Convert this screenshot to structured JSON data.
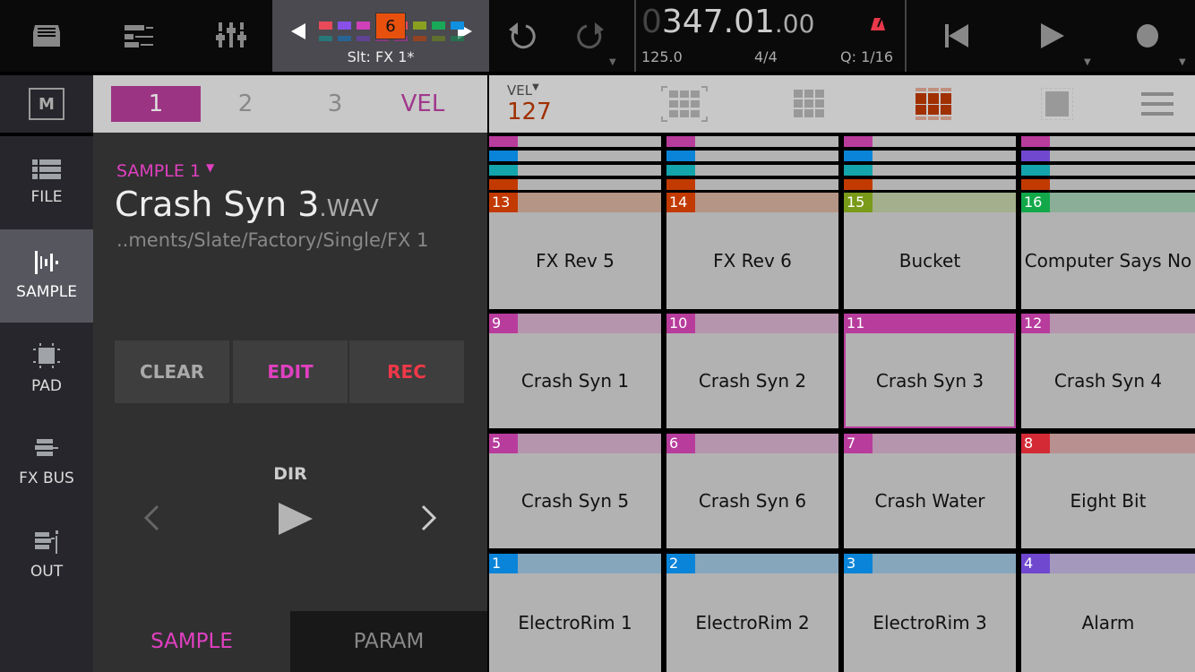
{
  "topbar": {
    "icons": [
      "browser-icon",
      "track-edit-icon",
      "mixer-icon"
    ],
    "slot": {
      "number": "6",
      "label": "Slt: FX 1*",
      "colors_top": [
        "#e84a5a",
        "#8850e8",
        "#d040b8",
        "#e84a5a",
        "#e84a5a",
        "#8aa020",
        "#18a858",
        "#1090e0"
      ],
      "colors_bottom": [
        "#1a8a8a",
        "#1a70b0",
        "#6a40b0",
        "#a03090",
        "#a03090",
        "#b04010",
        "#6a8020",
        "#188050"
      ],
      "badge_color": "#e8500e"
    },
    "clock": {
      "lead": "0",
      "main": "347.01",
      "frac": ".00",
      "tempo": "125.0",
      "time_sig": "4/4",
      "quantize": "Q: 1/16"
    }
  },
  "sidebar": {
    "mode_label": "M",
    "items": [
      {
        "label": "FILE",
        "icon": "list-icon"
      },
      {
        "label": "SAMPLE",
        "icon": "waveform-icon",
        "selected": true
      },
      {
        "label": "PAD",
        "icon": "pad-icon"
      },
      {
        "label": "FX BUS",
        "icon": "fx-bus-icon"
      },
      {
        "label": "OUT",
        "icon": "output-icon"
      }
    ]
  },
  "mid": {
    "tabs": [
      "1",
      "2",
      "3",
      "VEL"
    ],
    "sample_selector": "SAMPLE 1",
    "file_name": "Crash Syn 3",
    "file_ext": ".WAV",
    "path": "..ments/Slate/Factory/Single/FX 1",
    "buttons": {
      "clear": "CLEAR",
      "edit": "EDIT",
      "rec": "REC"
    },
    "dir_label": "DIR",
    "bottom_tabs": [
      "SAMPLE",
      "PARAM"
    ]
  },
  "pads_toolbar": {
    "vel_label": "VEL",
    "vel_value": "127"
  },
  "accent": "#b83c9c",
  "strips": [
    [
      "#b83c9c",
      "#0a84d8",
      "#14a4ac",
      "#c23a00"
    ],
    [
      "#b83c9c",
      "#0a84d8",
      "#14a4ac",
      "#c23a00"
    ],
    [
      "#b83c9c",
      "#0a84d8",
      "#14a4ac",
      "#c23a00"
    ],
    [
      "#b83c9c",
      "#7048d0",
      "#14a4ac",
      "#c23a00"
    ]
  ],
  "pads": [
    {
      "n": "13",
      "name": "FX Rev 5",
      "c": "#c23a00",
      "s": "#b59585"
    },
    {
      "n": "14",
      "name": "FX Rev 6",
      "c": "#c23a00",
      "s": "#b59585"
    },
    {
      "n": "15",
      "name": "Bucket",
      "c": "#7a9a1a",
      "s": "#a3af8d"
    },
    {
      "n": "16",
      "name": "Computer Says No",
      "c": "#12a84a",
      "s": "#8aae98"
    },
    {
      "n": "9",
      "name": "Crash Syn 1",
      "c": "#b83c9c",
      "s": "#b594ad"
    },
    {
      "n": "10",
      "name": "Crash Syn 2",
      "c": "#b83c9c",
      "s": "#b594ad"
    },
    {
      "n": "11",
      "name": "Crash Syn 3",
      "c": "#b83c9c",
      "s": "#b83c9c",
      "selected": true
    },
    {
      "n": "12",
      "name": "Crash Syn 4",
      "c": "#b83c9c",
      "s": "#b594ad"
    },
    {
      "n": "5",
      "name": "Crash Syn 5",
      "c": "#b83c9c",
      "s": "#b594ad"
    },
    {
      "n": "6",
      "name": "Crash Syn 6",
      "c": "#b83c9c",
      "s": "#b594ad"
    },
    {
      "n": "7",
      "name": "Crash Water",
      "c": "#b83c9c",
      "s": "#b594ad"
    },
    {
      "n": "8",
      "name": "Eight Bit",
      "c": "#d42a36",
      "s": "#b99090"
    },
    {
      "n": "1",
      "name": "ElectroRim 1",
      "c": "#0a84d8",
      "s": "#86a6bc"
    },
    {
      "n": "2",
      "name": "ElectroRim 2",
      "c": "#0a84d8",
      "s": "#86a6bc"
    },
    {
      "n": "3",
      "name": "ElectroRim 3",
      "c": "#0a84d8",
      "s": "#86a6bc"
    },
    {
      "n": "4",
      "name": "Alarm",
      "c": "#7048d0",
      "s": "#a498bc"
    }
  ]
}
